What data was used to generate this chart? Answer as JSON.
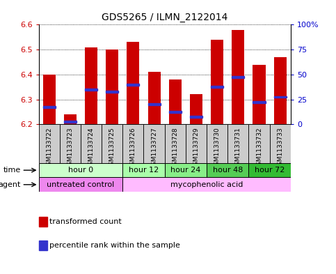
{
  "title": "GDS5265 / ILMN_2122014",
  "samples": [
    "GSM1133722",
    "GSM1133723",
    "GSM1133724",
    "GSM1133725",
    "GSM1133726",
    "GSM1133727",
    "GSM1133728",
    "GSM1133729",
    "GSM1133730",
    "GSM1133731",
    "GSM1133732",
    "GSM1133733"
  ],
  "bar_top": [
    6.4,
    6.24,
    6.51,
    6.5,
    6.53,
    6.41,
    6.38,
    6.32,
    6.54,
    6.58,
    6.44,
    6.47
  ],
  "bar_bottom": [
    6.2,
    6.2,
    6.2,
    6.2,
    6.2,
    6.2,
    6.2,
    6.2,
    6.2,
    6.2,
    6.2,
    6.2
  ],
  "percentile_y": [
    6.27,
    6.21,
    6.34,
    6.33,
    6.36,
    6.28,
    6.25,
    6.23,
    6.35,
    6.39,
    6.29,
    6.31
  ],
  "ylim": [
    6.2,
    6.6
  ],
  "yticks_left": [
    6.2,
    6.3,
    6.4,
    6.5,
    6.6
  ],
  "yticks_right": [
    0,
    25,
    50,
    75,
    100
  ],
  "bar_color": "#cc0000",
  "percentile_color": "#3333cc",
  "time_groups": [
    {
      "label": "hour 0",
      "start": 0,
      "end": 4,
      "color": "#ccffcc"
    },
    {
      "label": "hour 12",
      "start": 4,
      "end": 6,
      "color": "#aaffaa"
    },
    {
      "label": "hour 24",
      "start": 6,
      "end": 8,
      "color": "#88ee88"
    },
    {
      "label": "hour 48",
      "start": 8,
      "end": 10,
      "color": "#55cc55"
    },
    {
      "label": "hour 72",
      "start": 10,
      "end": 12,
      "color": "#33bb33"
    }
  ],
  "agent_groups": [
    {
      "label": "untreated control",
      "start": 0,
      "end": 4,
      "color": "#ee88ee"
    },
    {
      "label": "mycophenolic acid",
      "start": 4,
      "end": 12,
      "color": "#ffbbff"
    }
  ],
  "legend_items": [
    {
      "label": "transformed count",
      "color": "#cc0000"
    },
    {
      "label": "percentile rank within the sample",
      "color": "#3333cc"
    }
  ],
  "xlabel_time": "time",
  "xlabel_agent": "agent"
}
